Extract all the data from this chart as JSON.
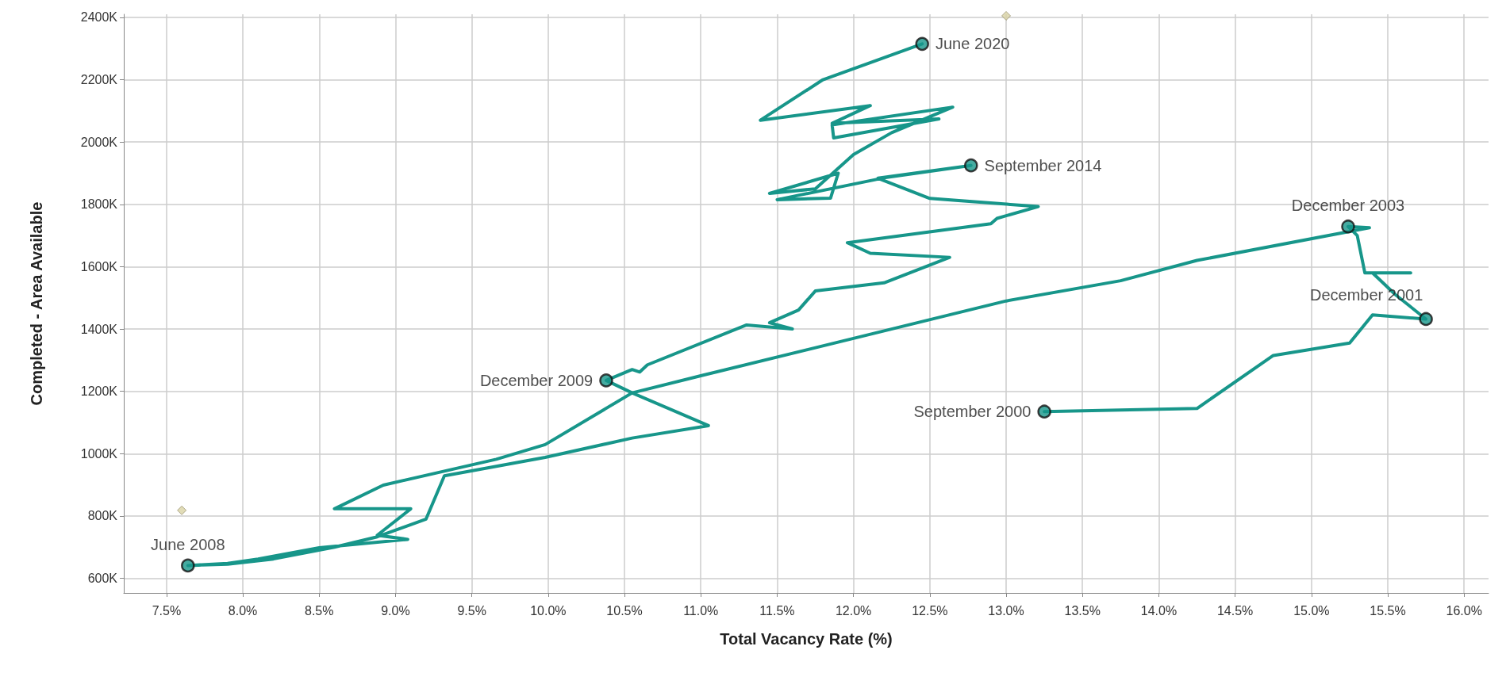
{
  "chart_data": {
    "type": "line",
    "xlabel": "Total Vacancy Rate (%)",
    "ylabel": "Completed - Area Available",
    "xlim": [
      7.22,
      16.16
    ],
    "ylim": [
      553,
      2410
    ],
    "xticks": [
      {
        "value": 7.5,
        "label": "7.5%"
      },
      {
        "value": 8,
        "label": "8.0%"
      },
      {
        "value": 8.5,
        "label": "8.5%"
      },
      {
        "value": 9,
        "label": "9.0%"
      },
      {
        "value": 9.5,
        "label": "9.5%"
      },
      {
        "value": 10,
        "label": "10.0%"
      },
      {
        "value": 10.5,
        "label": "10.5%"
      },
      {
        "value": 11,
        "label": "11.0%"
      },
      {
        "value": 11.5,
        "label": "11.5%"
      },
      {
        "value": 12,
        "label": "12.0%"
      },
      {
        "value": 12.5,
        "label": "12.5%"
      },
      {
        "value": 13,
        "label": "13.0%"
      },
      {
        "value": 13.5,
        "label": "13.5%"
      },
      {
        "value": 14,
        "label": "14.0%"
      },
      {
        "value": 14.5,
        "label": "14.5%"
      },
      {
        "value": 15,
        "label": "15.0%"
      },
      {
        "value": 15.5,
        "label": "15.5%"
      },
      {
        "value": 16,
        "label": "16.0%"
      }
    ],
    "yticks": [
      {
        "value": 600,
        "label": "600K"
      },
      {
        "value": 800,
        "label": "800K"
      },
      {
        "value": 1000,
        "label": "1000K"
      },
      {
        "value": 1200,
        "label": "1200K"
      },
      {
        "value": 1400,
        "label": "1400K"
      },
      {
        "value": 1600,
        "label": "1600K"
      },
      {
        "value": 1800,
        "label": "1800K"
      },
      {
        "value": 2000,
        "label": "2000K"
      },
      {
        "value": 2200,
        "label": "2200K"
      },
      {
        "value": 2400,
        "label": "2400K"
      }
    ],
    "grid": true,
    "series": [
      {
        "color": "#17968a",
        "marker": "none",
        "x": [
          13.25,
          14.25,
          14.75,
          15.25,
          15.4,
          15.75,
          15.55,
          15.4,
          15.65,
          15.35,
          15.3,
          15.24,
          15.38,
          14.25,
          13.75,
          13.0,
          12.0,
          11.0,
          10.55,
          9.98,
          9.66,
          8.92,
          8.6,
          9.1,
          8.88,
          9.08,
          8.5,
          8.1,
          7.9,
          7.64,
          7.9,
          8.2,
          8.6,
          8.88,
          9.2,
          9.32,
          9.98,
          10.55,
          11.05,
          10.55,
          10.38,
          10.55,
          10.6,
          10.65,
          11.3,
          11.6,
          11.45,
          11.64,
          11.75,
          12.2,
          12.63,
          12.11,
          11.96,
          12.9,
          12.94,
          13.21,
          12.5,
          12.16,
          12.77,
          12.2,
          11.5,
          11.85,
          11.9,
          11.45,
          11.75,
          12.0,
          12.25,
          12.65,
          11.86,
          11.87,
          12.56,
          11.86,
          12.11,
          11.39,
          11.8,
          12.45
        ],
        "values": [
          1135,
          1145,
          1315,
          1355,
          1445,
          1432,
          1510,
          1580,
          1580,
          1580,
          1700,
          1729,
          1725,
          1620,
          1555,
          1490,
          1370,
          1250,
          1195,
          1029,
          982,
          899,
          823,
          823,
          738,
          725,
          698,
          662,
          648,
          641,
          645,
          662,
          700,
          733,
          790,
          929,
          988,
          1050,
          1090,
          1195,
          1235,
          1270,
          1262,
          1285,
          1413,
          1400,
          1420,
          1461,
          1522,
          1548,
          1630,
          1643,
          1677,
          1738,
          1755,
          1793,
          1819,
          1884,
          1925,
          1885,
          1815,
          1820,
          1900,
          1835,
          1850,
          1960,
          2030,
          2112,
          2055,
          2013,
          2074,
          2060,
          2117,
          2070,
          2200,
          2315
        ]
      },
      {
        "type": "scatter",
        "color": "#d9d3a5",
        "marker": "diamond",
        "x": [
          7.6,
          13.0
        ],
        "values": [
          818,
          2405
        ]
      }
    ],
    "annotations": [
      {
        "text": "June 2020",
        "x": 12.45,
        "y": 2315
      },
      {
        "text": "September 2014",
        "x": 12.77,
        "y": 1925
      },
      {
        "text": "December 2003",
        "x": 15.24,
        "y": 1729
      },
      {
        "text": "December 2001",
        "x": 15.75,
        "y": 1432
      },
      {
        "text": "December 2009",
        "x": 10.38,
        "y": 1235
      },
      {
        "text": "September 2000",
        "x": 13.25,
        "y": 1135
      },
      {
        "text": "June 2008",
        "x": 7.64,
        "y": 641
      }
    ]
  }
}
